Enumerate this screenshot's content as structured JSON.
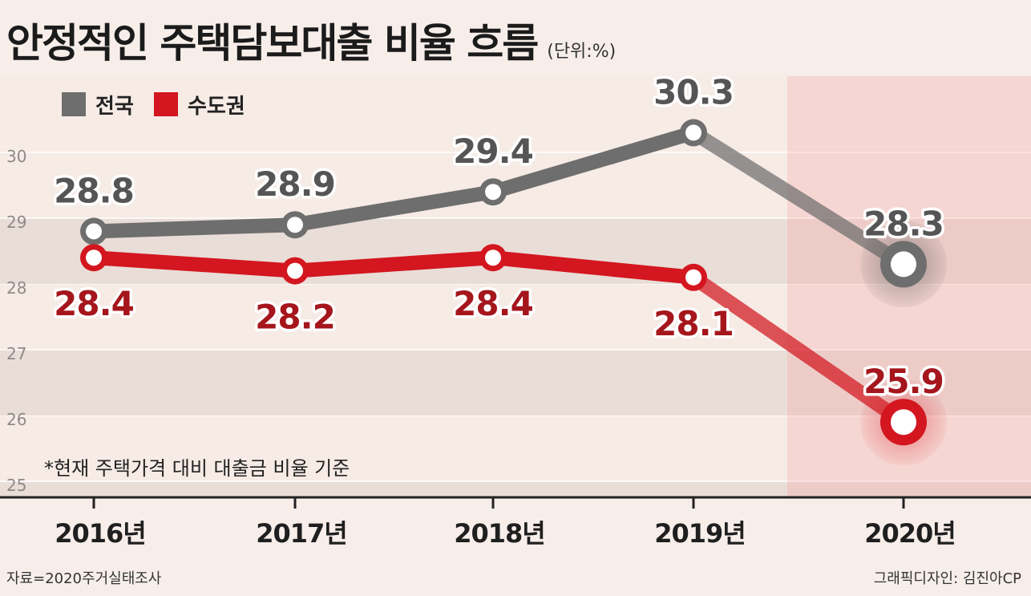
{
  "header": {
    "title": "안정적인 주택담보대출 비율 흐름",
    "unit": "(단위:%)"
  },
  "legend": [
    {
      "name": "전국",
      "color": "#6e6e6e"
    },
    {
      "name": "수도권",
      "color": "#d3161f"
    }
  ],
  "note": "*현재 주택가격 대비 대출금 비율 기준",
  "footer": {
    "source": "자료=2020주거실태조사",
    "credit": "그래픽디자인: 김진아CP"
  },
  "chart_data": {
    "type": "line",
    "title": "안정적인 주택담보대출 비율 흐름",
    "unit": "(단위:%)",
    "categories": [
      "2016년",
      "2017년",
      "2018년",
      "2019년",
      "2020년"
    ],
    "yticks": [
      25,
      26,
      27,
      28,
      29,
      30
    ],
    "ylim": [
      25,
      30.5
    ],
    "grid": "horizontal bands",
    "legend_position": "top-left",
    "highlight_category": "2020년",
    "series": [
      {
        "name": "전국",
        "color": "#6e6e6e",
        "label_color": "#555555",
        "values": [
          28.8,
          28.9,
          29.4,
          30.3,
          28.3
        ]
      },
      {
        "name": "수도권",
        "color": "#d3161f",
        "label_color": "#a5161c",
        "values": [
          28.4,
          28.2,
          28.4,
          28.1,
          25.9
        ]
      }
    ]
  }
}
